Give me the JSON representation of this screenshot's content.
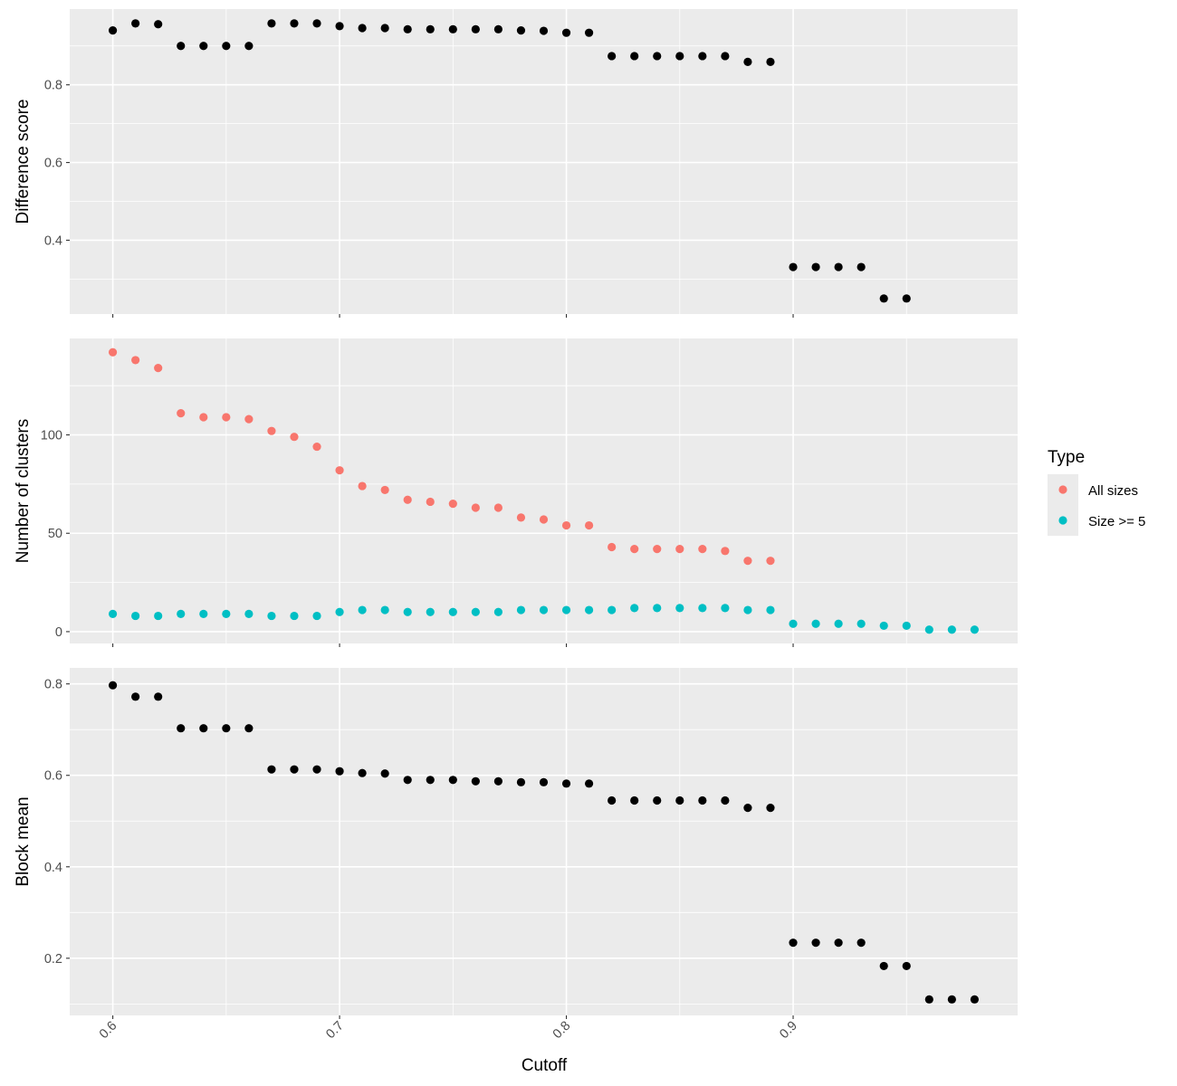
{
  "chart_data": {
    "type": "scatter",
    "xlabel": "Cutoff",
    "xlim": [
      0.581,
      0.999
    ],
    "x_ticks": [
      "0.6",
      "0.7",
      "0.8",
      "0.9"
    ],
    "x_tick_values": [
      0.6,
      0.7,
      0.8,
      0.9
    ],
    "grid": true,
    "legend": {
      "title": "Type",
      "placement": "right",
      "entries": [
        {
          "label": "All sizes",
          "color": "#F8766D"
        },
        {
          "label": "Size >= 5",
          "color": "#00BFC4"
        }
      ]
    },
    "panels": [
      {
        "ylabel": "Difference score",
        "ylim": [
          0.21,
          0.995
        ],
        "y_ticks": [
          "0.4",
          "0.6",
          "0.8"
        ],
        "y_tick_values": [
          0.4,
          0.6,
          0.8
        ],
        "y_minor": [
          0.3,
          0.5,
          0.7,
          0.9
        ],
        "series": [
          {
            "color": "#000000",
            "points": [
              [
                0.6,
                0.94
              ],
              [
                0.61,
                0.958
              ],
              [
                0.62,
                0.956
              ],
              [
                0.63,
                0.9
              ],
              [
                0.64,
                0.9
              ],
              [
                0.65,
                0.9
              ],
              [
                0.66,
                0.9
              ],
              [
                0.67,
                0.958
              ],
              [
                0.68,
                0.958
              ],
              [
                0.69,
                0.958
              ],
              [
                0.7,
                0.951
              ],
              [
                0.71,
                0.946
              ],
              [
                0.72,
                0.946
              ],
              [
                0.73,
                0.943
              ],
              [
                0.74,
                0.943
              ],
              [
                0.75,
                0.943
              ],
              [
                0.76,
                0.943
              ],
              [
                0.77,
                0.943
              ],
              [
                0.78,
                0.94
              ],
              [
                0.79,
                0.939
              ],
              [
                0.8,
                0.934
              ],
              [
                0.81,
                0.934
              ],
              [
                0.82,
                0.874
              ],
              [
                0.83,
                0.874
              ],
              [
                0.84,
                0.874
              ],
              [
                0.85,
                0.874
              ],
              [
                0.86,
                0.874
              ],
              [
                0.87,
                0.874
              ],
              [
                0.88,
                0.859
              ],
              [
                0.89,
                0.859
              ],
              [
                0.9,
                0.331
              ],
              [
                0.91,
                0.331
              ],
              [
                0.92,
                0.331
              ],
              [
                0.93,
                0.331
              ],
              [
                0.94,
                0.25
              ],
              [
                0.95,
                0.25
              ]
            ]
          }
        ]
      },
      {
        "ylabel": "Number of clusters",
        "ylim": [
          -6,
          149
        ],
        "y_ticks": [
          "0",
          "50",
          "100"
        ],
        "y_tick_values": [
          0,
          50,
          100
        ],
        "y_minor": [
          25,
          75,
          125
        ],
        "series": [
          {
            "name": "All sizes",
            "color": "#F8766D",
            "points": [
              [
                0.6,
                142
              ],
              [
                0.61,
                138
              ],
              [
                0.62,
                134
              ],
              [
                0.63,
                111
              ],
              [
                0.64,
                109
              ],
              [
                0.65,
                109
              ],
              [
                0.66,
                108
              ],
              [
                0.67,
                102
              ],
              [
                0.68,
                99
              ],
              [
                0.69,
                94
              ],
              [
                0.7,
                82
              ],
              [
                0.71,
                74
              ],
              [
                0.72,
                72
              ],
              [
                0.73,
                67
              ],
              [
                0.74,
                66
              ],
              [
                0.75,
                65
              ],
              [
                0.76,
                63
              ],
              [
                0.77,
                63
              ],
              [
                0.78,
                58
              ],
              [
                0.79,
                57
              ],
              [
                0.8,
                54
              ],
              [
                0.81,
                54
              ],
              [
                0.82,
                43
              ],
              [
                0.83,
                42
              ],
              [
                0.84,
                42
              ],
              [
                0.85,
                42
              ],
              [
                0.86,
                42
              ],
              [
                0.87,
                41
              ],
              [
                0.88,
                36
              ],
              [
                0.89,
                36
              ]
            ]
          },
          {
            "name": "Size >= 5",
            "color": "#00BFC4",
            "points": [
              [
                0.6,
                9
              ],
              [
                0.61,
                8
              ],
              [
                0.62,
                8
              ],
              [
                0.63,
                9
              ],
              [
                0.64,
                9
              ],
              [
                0.65,
                9
              ],
              [
                0.66,
                9
              ],
              [
                0.67,
                8
              ],
              [
                0.68,
                8
              ],
              [
                0.69,
                8
              ],
              [
                0.7,
                10
              ],
              [
                0.71,
                11
              ],
              [
                0.72,
                11
              ],
              [
                0.73,
                10
              ],
              [
                0.74,
                10
              ],
              [
                0.75,
                10
              ],
              [
                0.76,
                10
              ],
              [
                0.77,
                10
              ],
              [
                0.78,
                11
              ],
              [
                0.79,
                11
              ],
              [
                0.8,
                11
              ],
              [
                0.81,
                11
              ],
              [
                0.82,
                11
              ],
              [
                0.83,
                12
              ],
              [
                0.84,
                12
              ],
              [
                0.85,
                12
              ],
              [
                0.86,
                12
              ],
              [
                0.87,
                12
              ],
              [
                0.88,
                11
              ],
              [
                0.89,
                11
              ],
              [
                0.9,
                4
              ],
              [
                0.91,
                4
              ],
              [
                0.92,
                4
              ],
              [
                0.93,
                4
              ],
              [
                0.94,
                3
              ],
              [
                0.95,
                3
              ],
              [
                0.96,
                1
              ],
              [
                0.97,
                1
              ],
              [
                0.98,
                1
              ]
            ]
          }
        ]
      },
      {
        "ylabel": "Block mean",
        "ylim": [
          0.075,
          0.835
        ],
        "y_ticks": [
          "0.2",
          "0.4",
          "0.6",
          "0.8"
        ],
        "y_tick_values": [
          0.2,
          0.4,
          0.6,
          0.8
        ],
        "y_minor": [
          0.1,
          0.3,
          0.5,
          0.7
        ],
        "series": [
          {
            "color": "#000000",
            "points": [
              [
                0.6,
                0.797
              ],
              [
                0.61,
                0.772
              ],
              [
                0.62,
                0.772
              ],
              [
                0.63,
                0.703
              ],
              [
                0.64,
                0.703
              ],
              [
                0.65,
                0.703
              ],
              [
                0.66,
                0.703
              ],
              [
                0.67,
                0.613
              ],
              [
                0.68,
                0.613
              ],
              [
                0.69,
                0.613
              ],
              [
                0.7,
                0.609
              ],
              [
                0.71,
                0.605
              ],
              [
                0.72,
                0.604
              ],
              [
                0.73,
                0.59
              ],
              [
                0.74,
                0.59
              ],
              [
                0.75,
                0.59
              ],
              [
                0.76,
                0.587
              ],
              [
                0.77,
                0.587
              ],
              [
                0.78,
                0.585
              ],
              [
                0.79,
                0.585
              ],
              [
                0.8,
                0.582
              ],
              [
                0.81,
                0.582
              ],
              [
                0.82,
                0.545
              ],
              [
                0.83,
                0.545
              ],
              [
                0.84,
                0.545
              ],
              [
                0.85,
                0.545
              ],
              [
                0.86,
                0.545
              ],
              [
                0.87,
                0.545
              ],
              [
                0.88,
                0.529
              ],
              [
                0.89,
                0.529
              ],
              [
                0.9,
                0.234
              ],
              [
                0.91,
                0.234
              ],
              [
                0.92,
                0.234
              ],
              [
                0.93,
                0.234
              ],
              [
                0.94,
                0.183
              ],
              [
                0.95,
                0.183
              ],
              [
                0.96,
                0.11
              ],
              [
                0.97,
                0.11
              ],
              [
                0.98,
                0.11
              ]
            ]
          }
        ]
      }
    ]
  }
}
